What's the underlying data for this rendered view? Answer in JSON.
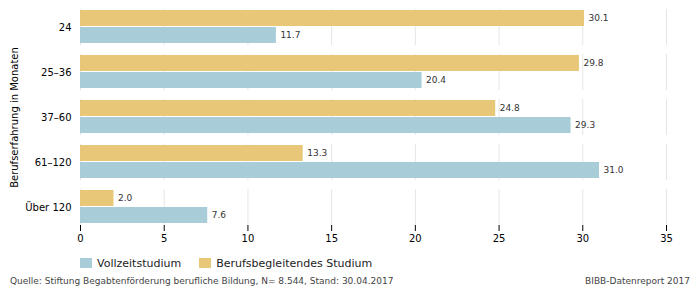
{
  "chart_data": {
    "type": "bar",
    "orientation": "horizontal",
    "categories": [
      "24",
      "25–36",
      "37–60",
      "61–120",
      "Über 120"
    ],
    "series": [
      {
        "name": "Vollzeitstudium",
        "color": "#a8cdd8",
        "values": [
          11.7,
          20.4,
          29.3,
          31.0,
          7.6
        ],
        "value_labels": [
          "11.7",
          "20.4",
          "29.3",
          "31.0",
          "7.6"
        ]
      },
      {
        "name": "Berufsbegleitendes Studium",
        "color": "#e8c878",
        "values": [
          30.1,
          29.8,
          24.8,
          13.3,
          2.0
        ],
        "value_labels": [
          "30.1",
          "29.8",
          "24.8",
          "13.3",
          "2.0"
        ]
      }
    ],
    "ylabel": "Berufserfahrung in Monaten",
    "xlim": [
      0,
      35
    ],
    "xticks": [
      0,
      5,
      10,
      15,
      20,
      25,
      30,
      35
    ],
    "grid": true,
    "data_labels": true,
    "legend": "bottom",
    "annotations": [
      "Quelle: Stiftung Begabtenförderung berufliche Bildung, N= 8.544, Stand: 30.04.2017",
      "BIBB-Datenreport 2017"
    ]
  }
}
